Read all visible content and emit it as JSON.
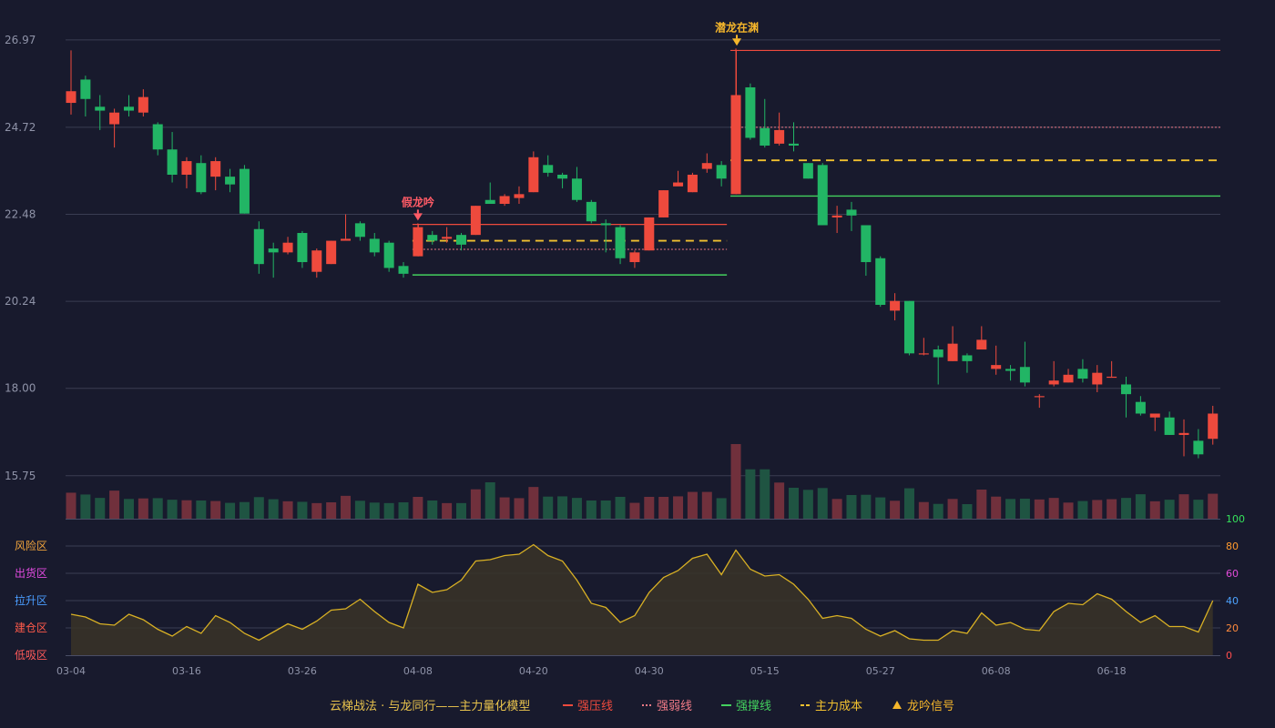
{
  "colors": {
    "background": "#181a2d",
    "up": "#ee4a3d",
    "down": "#22b565",
    "up_volume": "#70303c",
    "down_volume": "#1f5442",
    "grid": "#3a3d52",
    "axis_text": "#8f93a8",
    "pressure": "#ee4a3d",
    "weak": "#f07a86",
    "support": "#43d05e",
    "cost": "#f2c12f",
    "osc_line": "#d8b024",
    "osc_fill": "#3a3428",
    "signal": "#f5b62b",
    "fake_signal": "#ff5b66"
  },
  "chart_data": {
    "type": "candlestick",
    "price_axis": {
      "min": 14.62,
      "max": 27.53,
      "ticks": [
        26.97,
        24.72,
        22.48,
        20.24,
        18.0,
        15.75
      ]
    },
    "x_tick_labels": [
      {
        "index": 0,
        "label": "03-04"
      },
      {
        "index": 8,
        "label": "03-16"
      },
      {
        "index": 16,
        "label": "03-26"
      },
      {
        "index": 24,
        "label": "04-08"
      },
      {
        "index": 32,
        "label": "04-20"
      },
      {
        "index": 40,
        "label": "04-30"
      },
      {
        "index": 48,
        "label": "05-15"
      },
      {
        "index": 56,
        "label": "05-27"
      },
      {
        "index": 64,
        "label": "06-08"
      },
      {
        "index": 72,
        "label": "06-18"
      }
    ],
    "candles": [
      [
        25.35,
        25.65,
        25.05,
        26.7
      ],
      [
        25.95,
        25.45,
        25.0,
        26.05
      ],
      [
        25.25,
        25.15,
        24.65,
        25.55
      ],
      [
        24.8,
        25.1,
        24.2,
        25.2
      ],
      [
        25.25,
        25.15,
        25.0,
        25.55
      ],
      [
        25.1,
        25.5,
        25.0,
        25.7
      ],
      [
        24.8,
        24.15,
        24.0,
        24.85
      ],
      [
        24.15,
        23.5,
        23.3,
        24.6
      ],
      [
        23.5,
        23.85,
        23.15,
        23.95
      ],
      [
        23.8,
        23.05,
        23.0,
        24.0
      ],
      [
        23.45,
        23.85,
        23.1,
        23.95
      ],
      [
        23.45,
        23.25,
        23.05,
        23.65
      ],
      [
        23.65,
        22.5,
        22.5,
        23.75
      ],
      [
        22.1,
        21.2,
        20.95,
        22.3
      ],
      [
        21.6,
        21.5,
        20.85,
        21.75
      ],
      [
        21.5,
        21.75,
        21.45,
        21.9
      ],
      [
        22.0,
        21.25,
        21.1,
        22.05
      ],
      [
        21.0,
        21.55,
        20.85,
        21.6
      ],
      [
        21.2,
        21.8,
        21.2,
        21.8
      ],
      [
        21.8,
        21.85,
        21.85,
        22.48
      ],
      [
        22.25,
        21.9,
        21.8,
        22.3
      ],
      [
        21.85,
        21.5,
        21.4,
        22.0
      ],
      [
        21.75,
        21.1,
        21.0,
        21.8
      ],
      [
        21.15,
        20.95,
        20.85,
        21.25
      ],
      [
        21.4,
        22.15,
        21.4,
        22.25
      ],
      [
        21.95,
        21.8,
        21.7,
        22.05
      ],
      [
        21.85,
        21.9,
        21.75,
        22.15
      ],
      [
        21.95,
        21.7,
        21.55,
        22.0
      ],
      [
        21.95,
        22.7,
        21.95,
        22.7
      ],
      [
        22.85,
        22.75,
        22.75,
        23.3
      ],
      [
        22.75,
        22.95,
        22.7,
        23.0
      ],
      [
        22.9,
        23.0,
        22.75,
        23.2
      ],
      [
        23.05,
        23.95,
        23.05,
        24.1
      ],
      [
        23.75,
        23.55,
        23.45,
        24.0
      ],
      [
        23.5,
        23.4,
        23.15,
        23.55
      ],
      [
        23.4,
        22.85,
        22.8,
        23.7
      ],
      [
        22.8,
        22.3,
        22.25,
        22.85
      ],
      [
        22.25,
        22.2,
        21.5,
        22.35
      ],
      [
        22.15,
        21.35,
        21.2,
        22.2
      ],
      [
        21.25,
        21.5,
        21.1,
        21.55
      ],
      [
        21.55,
        22.4,
        21.55,
        22.4
      ],
      [
        22.4,
        23.1,
        22.4,
        23.1
      ],
      [
        23.2,
        23.3,
        23.25,
        23.6
      ],
      [
        23.05,
        23.5,
        23.05,
        23.55
      ],
      [
        23.65,
        23.8,
        23.55,
        24.05
      ],
      [
        23.75,
        23.4,
        23.2,
        23.85
      ],
      [
        23.0,
        25.55,
        23.0,
        26.75
      ],
      [
        25.75,
        24.45,
        24.4,
        25.85
      ],
      [
        24.7,
        24.25,
        24.2,
        25.45
      ],
      [
        24.3,
        24.65,
        24.25,
        25.1
      ],
      [
        24.3,
        24.25,
        24.1,
        24.85
      ],
      [
        23.8,
        23.4,
        23.4,
        23.8
      ],
      [
        23.75,
        22.2,
        22.2,
        23.8
      ],
      [
        22.4,
        22.45,
        22.0,
        22.7
      ],
      [
        22.6,
        22.45,
        22.05,
        22.8
      ],
      [
        22.2,
        21.25,
        20.9,
        22.2
      ],
      [
        21.35,
        20.15,
        20.1,
        21.4
      ],
      [
        20.0,
        20.25,
        19.75,
        20.45
      ],
      [
        20.25,
        18.9,
        18.85,
        20.25
      ],
      [
        18.9,
        18.9,
        18.85,
        19.3
      ],
      [
        19.0,
        18.8,
        18.1,
        19.1
      ],
      [
        18.7,
        19.15,
        18.7,
        19.6
      ],
      [
        18.85,
        18.7,
        18.4,
        18.9
      ],
      [
        19.0,
        19.25,
        19.1,
        19.6
      ],
      [
        18.5,
        18.6,
        18.35,
        19.1
      ],
      [
        18.5,
        18.45,
        18.2,
        18.6
      ],
      [
        18.55,
        18.15,
        18.05,
        19.2
      ],
      [
        17.8,
        17.8,
        17.5,
        17.85
      ],
      [
        18.1,
        18.2,
        18.05,
        18.7
      ],
      [
        18.15,
        18.35,
        18.15,
        18.5
      ],
      [
        18.5,
        18.25,
        18.15,
        18.75
      ],
      [
        18.1,
        18.4,
        17.9,
        18.6
      ],
      [
        18.3,
        18.3,
        18.3,
        18.7
      ],
      [
        18.1,
        17.85,
        17.25,
        18.3
      ],
      [
        17.65,
        17.35,
        17.3,
        17.8
      ],
      [
        17.25,
        17.35,
        16.9,
        17.35
      ],
      [
        17.25,
        16.8,
        16.8,
        17.4
      ],
      [
        16.8,
        16.85,
        16.25,
        17.2
      ],
      [
        16.65,
        16.3,
        16.2,
        16.95
      ],
      [
        16.7,
        17.35,
        16.55,
        17.55
      ]
    ],
    "volume": [
      100,
      93,
      80,
      108,
      76,
      78,
      79,
      73,
      71,
      70,
      68,
      61,
      64,
      83,
      75,
      67,
      65,
      60,
      63,
      88,
      69,
      62,
      60,
      63,
      84,
      70,
      60,
      60,
      113,
      140,
      82,
      79,
      122,
      85,
      86,
      80,
      70,
      70,
      84,
      61,
      84,
      84,
      86,
      103,
      103,
      79,
      287,
      190,
      190,
      139,
      119,
      111,
      118,
      76,
      91,
      92,
      82,
      69,
      117,
      64,
      57,
      76,
      56,
      112,
      85,
      76,
      77,
      74,
      80,
      62,
      68,
      72,
      75,
      80,
      94,
      67,
      73,
      94,
      73,
      96
    ],
    "oscillator": {
      "range": [
        0,
        100
      ],
      "ticks": [
        0,
        20,
        40,
        60,
        80,
        100
      ],
      "zones": [
        "风险区",
        "出货区",
        "拉升区",
        "建仓区",
        "低吸区"
      ],
      "values": [
        30,
        28,
        23,
        22,
        30,
        26,
        19,
        14,
        21,
        16,
        29,
        24,
        16,
        11,
        17,
        23,
        19,
        25,
        33,
        34,
        41,
        32,
        24,
        20,
        52,
        46,
        48,
        55,
        69,
        70,
        73,
        74,
        81,
        73,
        69,
        55,
        38,
        35,
        24,
        29,
        46,
        57,
        62,
        71,
        74,
        59,
        77,
        63,
        58,
        59,
        52,
        41,
        27,
        29,
        27,
        19,
        14,
        18,
        12,
        11,
        11,
        18,
        16,
        31,
        22,
        24,
        19,
        18,
        32,
        38,
        37,
        45,
        41,
        32,
        24,
        29,
        21,
        21,
        17,
        40
      ]
    },
    "levels": [
      {
        "name": "强压线",
        "type": "pressure",
        "value": 22.22,
        "from": 24,
        "to": 45
      },
      {
        "name": "强弱线",
        "type": "weak",
        "value": 21.58,
        "from": 24,
        "to": 45
      },
      {
        "name": "主力成本",
        "type": "cost",
        "value": 21.8,
        "from": 24,
        "to": 45
      },
      {
        "name": "强撑线",
        "type": "support",
        "value": 20.92,
        "from": 24,
        "to": 45
      },
      {
        "name": "强压线",
        "type": "pressure",
        "value": 26.7,
        "from": 46,
        "to": 79
      },
      {
        "name": "强弱线",
        "type": "weak",
        "value": 24.72,
        "from": 46,
        "to": 79
      },
      {
        "name": "主力成本",
        "type": "cost",
        "value": 23.87,
        "from": 46,
        "to": 79
      },
      {
        "name": "强撑线",
        "type": "support",
        "value": 22.95,
        "from": 46,
        "to": 79
      }
    ],
    "annotations": [
      {
        "label": "假龙吟",
        "index": 24,
        "kind": "fake"
      },
      {
        "label": "潜龙在渊",
        "index": 46,
        "kind": "signal"
      }
    ]
  },
  "legend": {
    "title": "云梯战法 · 与龙同行——主力量化模型",
    "items": [
      {
        "label": "强压线",
        "marker": "solid",
        "color": "#ee4a3d"
      },
      {
        "label": "强弱线",
        "marker": "dotted",
        "color": "#f07a86"
      },
      {
        "label": "强撑线",
        "marker": "solid",
        "color": "#43d05e"
      },
      {
        "label": "主力成本",
        "marker": "dashed",
        "color": "#f2c12f"
      },
      {
        "label": "龙吟信号",
        "marker": "triangle",
        "color": "#f5b62b"
      }
    ]
  }
}
